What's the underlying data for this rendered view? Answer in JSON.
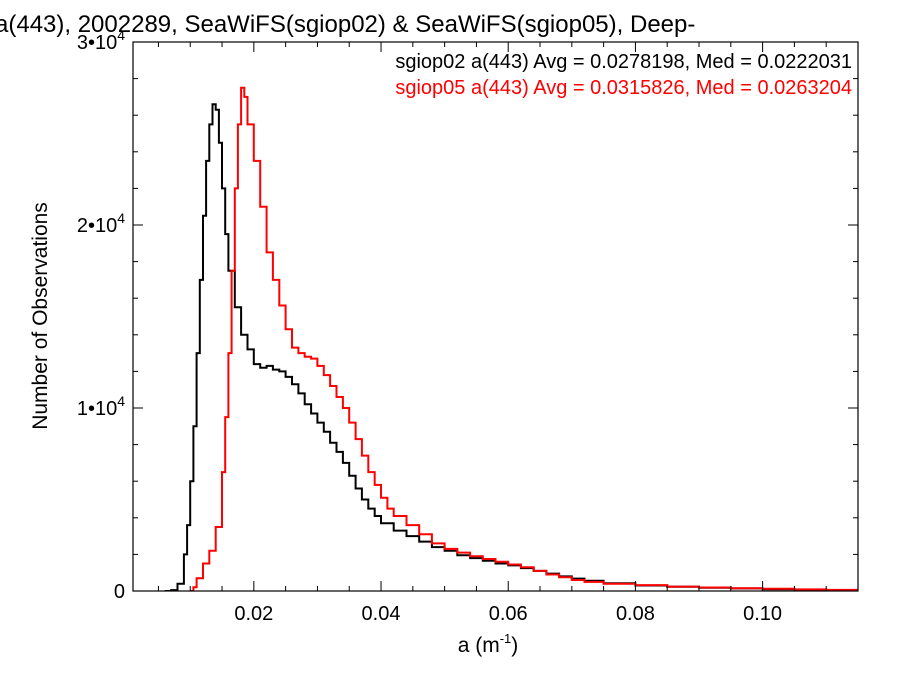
{
  "chart_data": {
    "type": "line",
    "step": true,
    "title": "a(443), 2002289, SeaWiFS(sgiop02) & SeaWiFS(sgiop05), Deep-",
    "xlabel": "a (m",
    "xlabel_sup": "-1",
    "xlabel_close": ")",
    "ylabel": "Number of Observations",
    "xlim": [
      0.001,
      0.115
    ],
    "ylim": [
      0,
      30000
    ],
    "x_ticks": [
      0.02,
      0.04,
      0.06,
      0.08,
      0.1
    ],
    "x_tick_labels": [
      "0.02",
      "0.04",
      "0.06",
      "0.08",
      "0.10"
    ],
    "y_ticks": [
      {
        "value": 0,
        "mantissa": "0",
        "exp": ""
      },
      {
        "value": 10000,
        "mantissa": "1•",
        "base": "10",
        "exp": "4"
      },
      {
        "value": 20000,
        "mantissa": "2•",
        "base": "10",
        "exp": "4"
      },
      {
        "value": 30000,
        "mantissa": "3•",
        "base": "10",
        "exp": "4"
      }
    ],
    "grid": false,
    "legend_position": "top-right",
    "series": [
      {
        "name": "sgiop02 a(443) Avg = 0.0278198, Med = 0.0222031",
        "color": "#000000",
        "points": [
          [
            0.006,
            0
          ],
          [
            0.007,
            50
          ],
          [
            0.008,
            400
          ],
          [
            0.009,
            2000
          ],
          [
            0.0095,
            3600
          ],
          [
            0.01,
            6000
          ],
          [
            0.0105,
            9000
          ],
          [
            0.011,
            13000
          ],
          [
            0.0115,
            17000
          ],
          [
            0.012,
            20500
          ],
          [
            0.0125,
            23500
          ],
          [
            0.013,
            25500
          ],
          [
            0.0135,
            26600
          ],
          [
            0.014,
            26300
          ],
          [
            0.0145,
            24500
          ],
          [
            0.015,
            22000
          ],
          [
            0.0155,
            19500
          ],
          [
            0.016,
            17500
          ],
          [
            0.017,
            15500
          ],
          [
            0.018,
            14000
          ],
          [
            0.019,
            13200
          ],
          [
            0.02,
            12400
          ],
          [
            0.021,
            12200
          ],
          [
            0.022,
            12300
          ],
          [
            0.023,
            12100
          ],
          [
            0.024,
            12000
          ],
          [
            0.025,
            11700
          ],
          [
            0.026,
            11300
          ],
          [
            0.027,
            10800
          ],
          [
            0.028,
            10200
          ],
          [
            0.029,
            9700
          ],
          [
            0.03,
            9200
          ],
          [
            0.031,
            8700
          ],
          [
            0.032,
            8100
          ],
          [
            0.033,
            7600
          ],
          [
            0.034,
            7000
          ],
          [
            0.035,
            6300
          ],
          [
            0.036,
            5600
          ],
          [
            0.037,
            5000
          ],
          [
            0.038,
            4500
          ],
          [
            0.039,
            4100
          ],
          [
            0.04,
            3700
          ],
          [
            0.042,
            3300
          ],
          [
            0.044,
            3000
          ],
          [
            0.046,
            2700
          ],
          [
            0.048,
            2400
          ],
          [
            0.05,
            2200
          ],
          [
            0.052,
            1950
          ],
          [
            0.054,
            1800
          ],
          [
            0.056,
            1650
          ],
          [
            0.058,
            1500
          ],
          [
            0.06,
            1400
          ],
          [
            0.062,
            1250
          ],
          [
            0.064,
            1100
          ],
          [
            0.066,
            950
          ],
          [
            0.068,
            800
          ],
          [
            0.07,
            680
          ],
          [
            0.072,
            560
          ],
          [
            0.075,
            420
          ],
          [
            0.08,
            300
          ],
          [
            0.085,
            230
          ],
          [
            0.09,
            180
          ],
          [
            0.095,
            140
          ],
          [
            0.1,
            100
          ],
          [
            0.105,
            70
          ],
          [
            0.11,
            45
          ],
          [
            0.115,
            30
          ]
        ]
      },
      {
        "name": "sgiop05 a(443) Avg = 0.0315826, Med = 0.0263204",
        "color": "#ff0000",
        "points": [
          [
            0.01,
            0
          ],
          [
            0.0105,
            200
          ],
          [
            0.011,
            700
          ],
          [
            0.012,
            1500
          ],
          [
            0.013,
            2200
          ],
          [
            0.014,
            3500
          ],
          [
            0.015,
            6500
          ],
          [
            0.0155,
            9500
          ],
          [
            0.016,
            13000
          ],
          [
            0.0165,
            17500
          ],
          [
            0.017,
            22000
          ],
          [
            0.0175,
            25500
          ],
          [
            0.018,
            27500
          ],
          [
            0.0185,
            27000
          ],
          [
            0.019,
            25500
          ],
          [
            0.02,
            23500
          ],
          [
            0.021,
            21000
          ],
          [
            0.022,
            18500
          ],
          [
            0.023,
            17000
          ],
          [
            0.024,
            15600
          ],
          [
            0.025,
            14300
          ],
          [
            0.026,
            13300
          ],
          [
            0.027,
            13000
          ],
          [
            0.028,
            12800
          ],
          [
            0.029,
            12700
          ],
          [
            0.03,
            12300
          ],
          [
            0.031,
            11800
          ],
          [
            0.032,
            11200
          ],
          [
            0.033,
            10600
          ],
          [
            0.034,
            10000
          ],
          [
            0.035,
            9200
          ],
          [
            0.036,
            8300
          ],
          [
            0.037,
            7400
          ],
          [
            0.038,
            6500
          ],
          [
            0.039,
            5800
          ],
          [
            0.04,
            5100
          ],
          [
            0.041,
            4500
          ],
          [
            0.042,
            4100
          ],
          [
            0.044,
            3600
          ],
          [
            0.046,
            3100
          ],
          [
            0.048,
            2600
          ],
          [
            0.05,
            2300
          ],
          [
            0.052,
            2100
          ],
          [
            0.054,
            1900
          ],
          [
            0.056,
            1750
          ],
          [
            0.058,
            1600
          ],
          [
            0.06,
            1450
          ],
          [
            0.062,
            1300
          ],
          [
            0.064,
            1100
          ],
          [
            0.066,
            900
          ],
          [
            0.068,
            750
          ],
          [
            0.07,
            600
          ],
          [
            0.072,
            500
          ],
          [
            0.075,
            400
          ],
          [
            0.08,
            320
          ],
          [
            0.085,
            240
          ],
          [
            0.09,
            190
          ],
          [
            0.095,
            150
          ],
          [
            0.1,
            120
          ],
          [
            0.105,
            90
          ],
          [
            0.11,
            60
          ],
          [
            0.115,
            40
          ]
        ]
      }
    ]
  }
}
